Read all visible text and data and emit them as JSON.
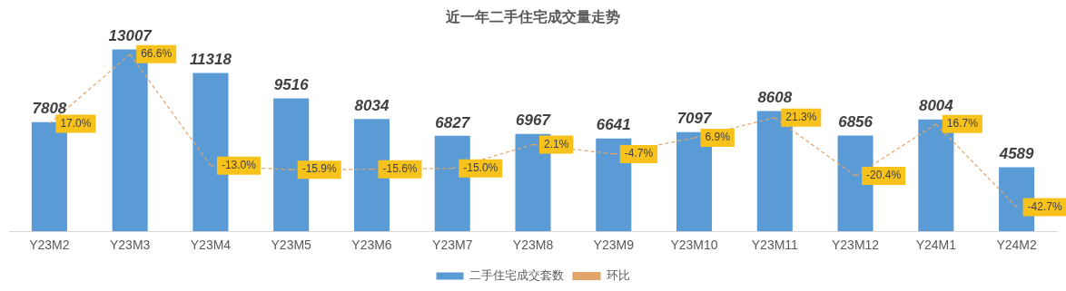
{
  "chart_data": {
    "type": "bar",
    "title": "近一年二手住宅成交量走势",
    "categories": [
      "Y23M2",
      "Y23M3",
      "Y23M4",
      "Y23M5",
      "Y23M6",
      "Y23M7",
      "Y23M8",
      "Y23M9",
      "Y23M10",
      "Y23M11",
      "Y23M12",
      "Y24M1",
      "Y24M2"
    ],
    "series": [
      {
        "name": "二手住宅成交套数",
        "color": "#5b9bd5",
        "values": [
          7808,
          13007,
          11318,
          9516,
          8034,
          6827,
          6967,
          6641,
          7097,
          8608,
          6856,
          8004,
          4589
        ],
        "value_labels": [
          "7808",
          "13007",
          "11318",
          "9516",
          "8034",
          "6827",
          "6967",
          "6641",
          "7097",
          "8608",
          "6856",
          "8004",
          "4589"
        ]
      },
      {
        "name": "环比",
        "type": "line",
        "axis": "y2",
        "color": "#e2a66a",
        "line_style": "dashed",
        "marker": "none",
        "values": [
          17.0,
          66.6,
          -13.0,
          -15.9,
          -15.6,
          -15.0,
          2.1,
          -4.7,
          6.9,
          21.3,
          -20.4,
          16.7,
          -42.7
        ],
        "value_labels": [
          "17.0%",
          "66.6%",
          "-13.0%",
          "-15.9%",
          "-15.6%",
          "-15.0%",
          "2.1%",
          "-4.7%",
          "6.9%",
          "21.3%",
          "-20.4%",
          "16.7%",
          "-42.7%"
        ]
      }
    ],
    "legend": "bottom",
    "grid": false,
    "tick_labels": "x"
  }
}
